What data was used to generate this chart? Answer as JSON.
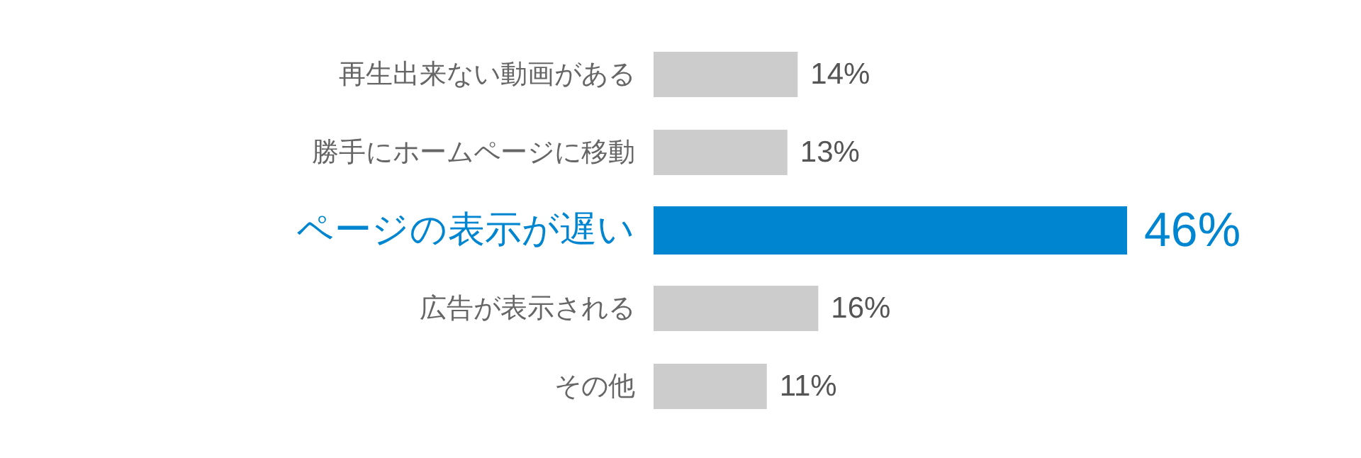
{
  "chart_data": {
    "type": "bar",
    "orientation": "horizontal",
    "categories": [
      "再生出来ない動画がある",
      "勝手にホームページに移動",
      "ページの表示が遅い",
      "広告が表示される",
      "その他"
    ],
    "values": [
      14,
      13,
      46,
      16,
      11
    ],
    "colors": [
      "#cccccc",
      "#cccccc",
      "#0085d0",
      "#cccccc",
      "#cccccc"
    ],
    "value_labels": [
      "14%",
      "13%",
      "46%",
      "16%",
      "11%"
    ]
  }
}
